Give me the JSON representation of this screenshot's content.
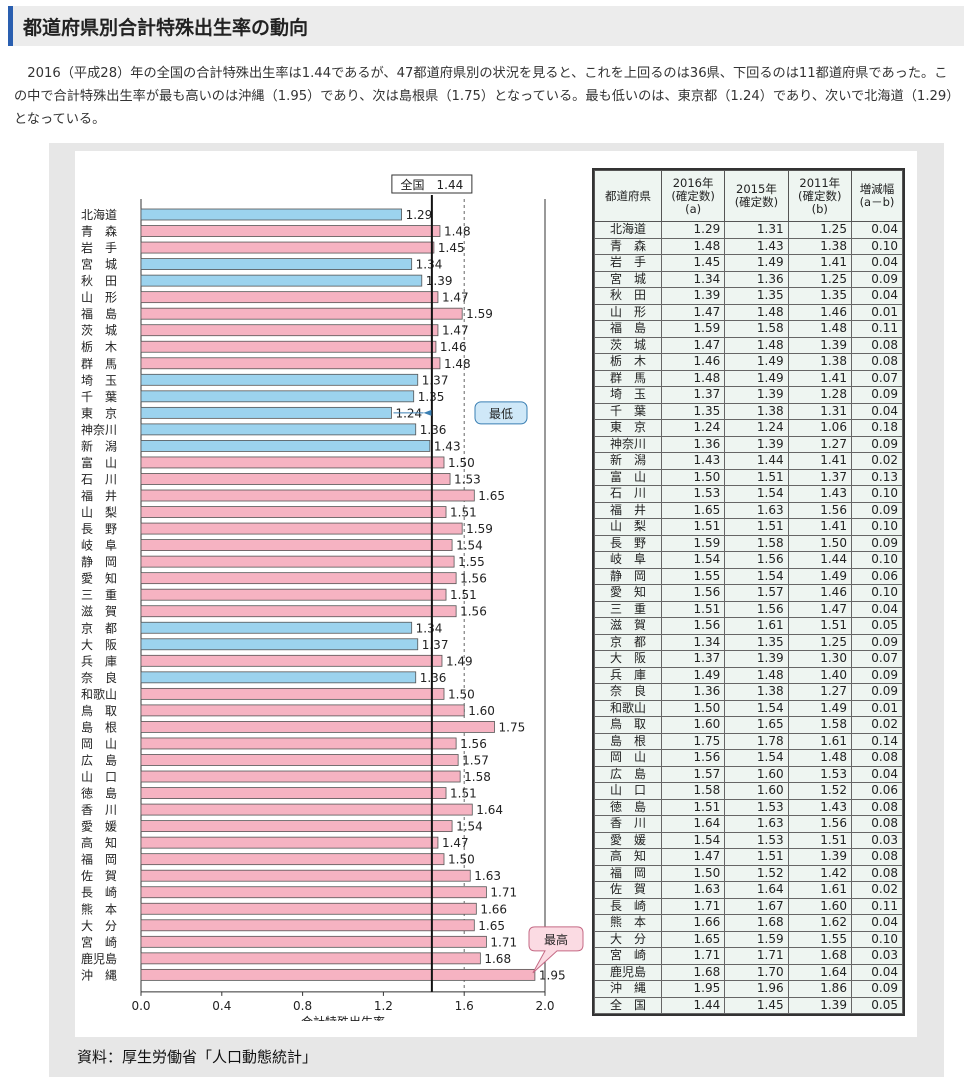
{
  "heading": "都道府県別合計特殊出生率の動向",
  "intro": "2016（平成28）年の全国の合計特殊出生率は1.44であるが、47都道府県別の状況を見ると、これを上回るのは36県、下回るのは11都道府県であった。この中で合計特殊出生率が最も高いのは沖縄（1.95）であり、次は島根県（1.75）となっている。最も低いのは、東京都（1.24）であり、次いで北海道（1.29）となっている。",
  "source": "資料：厚生労働省「人口動態統計」",
  "colors": {
    "below_national": "#9cd3ee",
    "above_national": "#f6b3c2",
    "callout_low": "#cfe8f8",
    "callout_high": "#fbdbe3",
    "accent": "#2a5fb0"
  },
  "chart_data": [
    {
      "type": "bar",
      "orientation": "horizontal",
      "categories": [
        "北海道",
        "青　森",
        "岩　手",
        "宮　城",
        "秋　田",
        "山　形",
        "福　島",
        "茨　城",
        "栃　木",
        "群　馬",
        "埼　玉",
        "千　葉",
        "東　京",
        "神奈川",
        "新　潟",
        "富　山",
        "石　川",
        "福　井",
        "山　梨",
        "長　野",
        "岐　阜",
        "静　岡",
        "愛　知",
        "三　重",
        "滋　賀",
        "京　都",
        "大　阪",
        "兵　庫",
        "奈　良",
        "和歌山",
        "鳥　取",
        "島　根",
        "岡　山",
        "広　島",
        "山　口",
        "徳　島",
        "香　川",
        "愛　媛",
        "高　知",
        "福　岡",
        "佐　賀",
        "長　崎",
        "熊　本",
        "大　分",
        "宮　崎",
        "鹿児島",
        "沖　縄"
      ],
      "values": [
        1.29,
        1.48,
        1.45,
        1.34,
        1.39,
        1.47,
        1.59,
        1.47,
        1.46,
        1.48,
        1.37,
        1.35,
        1.24,
        1.36,
        1.43,
        1.5,
        1.53,
        1.65,
        1.51,
        1.59,
        1.54,
        1.55,
        1.56,
        1.51,
        1.56,
        1.34,
        1.37,
        1.49,
        1.36,
        1.5,
        1.6,
        1.75,
        1.56,
        1.57,
        1.58,
        1.51,
        1.64,
        1.54,
        1.47,
        1.5,
        1.63,
        1.71,
        1.66,
        1.65,
        1.71,
        1.68,
        1.95
      ],
      "value_labels": [
        "1.29",
        "1.48",
        "1.45",
        "1.34",
        "1.39",
        "1.47",
        "1.59",
        "1.47",
        "1.46",
        "1.48",
        "1.37",
        "1.35",
        "1.24",
        "1.36",
        "1.43",
        "1.50",
        "1.53",
        "1.65",
        "1.51",
        "1.59",
        "1.54",
        "1.55",
        "1.56",
        "1.51",
        "1.56",
        "1.34",
        "1.37",
        "1.49",
        "1.36",
        "1.50",
        "1.60",
        "1.75",
        "1.56",
        "1.57",
        "1.58",
        "1.51",
        "1.64",
        "1.54",
        "1.47",
        "1.50",
        "1.63",
        "1.71",
        "1.66",
        "1.65",
        "1.71",
        "1.68",
        "1.95"
      ],
      "xlabel": "合計特殊出生率",
      "xlim": [
        0,
        2.0
      ],
      "xticks": [
        "0.0",
        "0.4",
        "0.8",
        "1.2",
        "1.6",
        "2.0"
      ],
      "national_value": 1.44,
      "national_label": "全国　1.44",
      "gridline_at": 1.6,
      "annotations": [
        {
          "text": "最低",
          "category_index": 12
        },
        {
          "text": "最高",
          "category_index": 46
        }
      ]
    },
    {
      "type": "table",
      "columns": [
        "都道府県",
        "2016年\n(確定数)\n(a)",
        "2015年\n(確定数)",
        "2011年\n(確定数)\n(b)",
        "増減幅\n(a－b)"
      ],
      "rows": [
        [
          "北海道",
          "1.29",
          "1.31",
          "1.25",
          "0.04"
        ],
        [
          "青　森",
          "1.48",
          "1.43",
          "1.38",
          "0.10"
        ],
        [
          "岩　手",
          "1.45",
          "1.49",
          "1.41",
          "0.04"
        ],
        [
          "宮　城",
          "1.34",
          "1.36",
          "1.25",
          "0.09"
        ],
        [
          "秋　田",
          "1.39",
          "1.35",
          "1.35",
          "0.04"
        ],
        [
          "山　形",
          "1.47",
          "1.48",
          "1.46",
          "0.01"
        ],
        [
          "福　島",
          "1.59",
          "1.58",
          "1.48",
          "0.11"
        ],
        [
          "茨　城",
          "1.47",
          "1.48",
          "1.39",
          "0.08"
        ],
        [
          "栃　木",
          "1.46",
          "1.49",
          "1.38",
          "0.08"
        ],
        [
          "群　馬",
          "1.48",
          "1.49",
          "1.41",
          "0.07"
        ],
        [
          "埼　玉",
          "1.37",
          "1.39",
          "1.28",
          "0.09"
        ],
        [
          "千　葉",
          "1.35",
          "1.38",
          "1.31",
          "0.04"
        ],
        [
          "東　京",
          "1.24",
          "1.24",
          "1.06",
          "0.18"
        ],
        [
          "神奈川",
          "1.36",
          "1.39",
          "1.27",
          "0.09"
        ],
        [
          "新　潟",
          "1.43",
          "1.44",
          "1.41",
          "0.02"
        ],
        [
          "富　山",
          "1.50",
          "1.51",
          "1.37",
          "0.13"
        ],
        [
          "石　川",
          "1.53",
          "1.54",
          "1.43",
          "0.10"
        ],
        [
          "福　井",
          "1.65",
          "1.63",
          "1.56",
          "0.09"
        ],
        [
          "山　梨",
          "1.51",
          "1.51",
          "1.41",
          "0.10"
        ],
        [
          "長　野",
          "1.59",
          "1.58",
          "1.50",
          "0.09"
        ],
        [
          "岐　阜",
          "1.54",
          "1.56",
          "1.44",
          "0.10"
        ],
        [
          "静　岡",
          "1.55",
          "1.54",
          "1.49",
          "0.06"
        ],
        [
          "愛　知",
          "1.56",
          "1.57",
          "1.46",
          "0.10"
        ],
        [
          "三　重",
          "1.51",
          "1.56",
          "1.47",
          "0.04"
        ],
        [
          "滋　賀",
          "1.56",
          "1.61",
          "1.51",
          "0.05"
        ],
        [
          "京　都",
          "1.34",
          "1.35",
          "1.25",
          "0.09"
        ],
        [
          "大　阪",
          "1.37",
          "1.39",
          "1.30",
          "0.07"
        ],
        [
          "兵　庫",
          "1.49",
          "1.48",
          "1.40",
          "0.09"
        ],
        [
          "奈　良",
          "1.36",
          "1.38",
          "1.27",
          "0.09"
        ],
        [
          "和歌山",
          "1.50",
          "1.54",
          "1.49",
          "0.01"
        ],
        [
          "鳥　取",
          "1.60",
          "1.65",
          "1.58",
          "0.02"
        ],
        [
          "島　根",
          "1.75",
          "1.78",
          "1.61",
          "0.14"
        ],
        [
          "岡　山",
          "1.56",
          "1.54",
          "1.48",
          "0.08"
        ],
        [
          "広　島",
          "1.57",
          "1.60",
          "1.53",
          "0.04"
        ],
        [
          "山　口",
          "1.58",
          "1.60",
          "1.52",
          "0.06"
        ],
        [
          "徳　島",
          "1.51",
          "1.53",
          "1.43",
          "0.08"
        ],
        [
          "香　川",
          "1.64",
          "1.63",
          "1.56",
          "0.08"
        ],
        [
          "愛　媛",
          "1.54",
          "1.53",
          "1.51",
          "0.03"
        ],
        [
          "高　知",
          "1.47",
          "1.51",
          "1.39",
          "0.08"
        ],
        [
          "福　岡",
          "1.50",
          "1.52",
          "1.42",
          "0.08"
        ],
        [
          "佐　賀",
          "1.63",
          "1.64",
          "1.61",
          "0.02"
        ],
        [
          "長　崎",
          "1.71",
          "1.67",
          "1.60",
          "0.11"
        ],
        [
          "熊　本",
          "1.66",
          "1.68",
          "1.62",
          "0.04"
        ],
        [
          "大　分",
          "1.65",
          "1.59",
          "1.55",
          "0.10"
        ],
        [
          "宮　崎",
          "1.71",
          "1.71",
          "1.68",
          "0.03"
        ],
        [
          "鹿児島",
          "1.68",
          "1.70",
          "1.64",
          "0.04"
        ],
        [
          "沖　縄",
          "1.95",
          "1.96",
          "1.86",
          "0.09"
        ],
        [
          "全　国",
          "1.44",
          "1.45",
          "1.39",
          "0.05"
        ]
      ]
    }
  ]
}
